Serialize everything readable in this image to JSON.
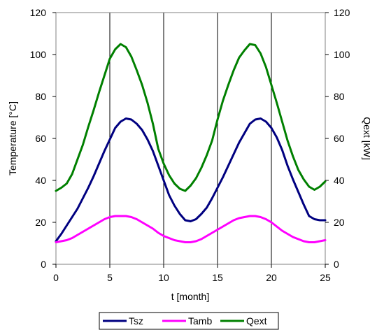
{
  "chart_data": {
    "type": "line",
    "xlabel": "t [month]",
    "ylabel": "Temperature [°C]",
    "y2label": "Qext [kW]",
    "xlim": [
      0,
      25
    ],
    "ylim": [
      0,
      120
    ],
    "y2lim": [
      0,
      120
    ],
    "xticks": [
      0,
      5,
      10,
      15,
      20,
      25
    ],
    "yticks": [
      0,
      20,
      40,
      60,
      80,
      100,
      120
    ],
    "y2ticks": [
      0,
      20,
      40,
      60,
      80,
      100,
      120
    ],
    "grid": "vertical",
    "legend_position": "bottom",
    "x": [
      0,
      0.5,
      1,
      1.5,
      2,
      2.5,
      3,
      3.5,
      4,
      4.5,
      5,
      5.5,
      6,
      6.5,
      7,
      7.5,
      8,
      8.5,
      9,
      9.5,
      10,
      10.5,
      11,
      11.5,
      12,
      12.5,
      13,
      13.5,
      14,
      14.5,
      15,
      15.5,
      16,
      16.5,
      17,
      17.5,
      18,
      18.5,
      19,
      19.5,
      20,
      20.5,
      21,
      21.5,
      22,
      22.5,
      23,
      23.5,
      24,
      24.5,
      25
    ],
    "series": [
      {
        "name": "Tsz",
        "color": "#000080",
        "values": [
          11,
          14.5,
          18.5,
          22.5,
          26.5,
          31.5,
          36.5,
          42,
          48,
          54,
          59.5,
          65,
          68,
          69.5,
          69,
          67,
          64,
          59.5,
          54,
          47,
          40,
          33,
          28,
          24,
          21,
          20.5,
          21.5,
          24,
          27,
          31.5,
          36.5,
          41.5,
          47,
          52.5,
          58,
          62.5,
          67,
          69,
          69.5,
          68,
          65,
          60.5,
          54.5,
          47,
          40.5,
          34.5,
          28.5,
          23,
          21.5,
          21,
          21
        ]
      },
      {
        "name": "Tamb",
        "color": "#ff00ff",
        "values": [
          10.5,
          11,
          11.5,
          12.5,
          14,
          15.5,
          17,
          18.5,
          20,
          21.5,
          22.5,
          23,
          23,
          23,
          22.5,
          21.5,
          20,
          18.5,
          17,
          15,
          13.5,
          12.5,
          11.5,
          11,
          10.5,
          10.5,
          11,
          12,
          13.5,
          15,
          16.5,
          18,
          19.5,
          21,
          22,
          22.5,
          23,
          23,
          22.5,
          21.5,
          20,
          18,
          16,
          14.5,
          13,
          12,
          11,
          10.5,
          10.5,
          11,
          11.5
        ]
      },
      {
        "name": "Qext",
        "color": "#008000",
        "values": [
          35,
          36.5,
          38.5,
          43,
          50,
          57,
          65.5,
          73.5,
          82,
          90,
          98,
          102.5,
          105,
          103.5,
          99,
          92.5,
          85.5,
          77,
          67,
          55,
          48,
          42.5,
          38.5,
          36,
          35,
          37.5,
          41,
          46,
          52,
          59,
          69,
          78,
          85.5,
          92.5,
          98.5,
          102,
          105,
          104.5,
          100.5,
          94,
          85.5,
          77,
          68,
          59,
          51.5,
          45,
          40.5,
          37,
          35.5,
          37,
          39.5
        ]
      }
    ]
  }
}
